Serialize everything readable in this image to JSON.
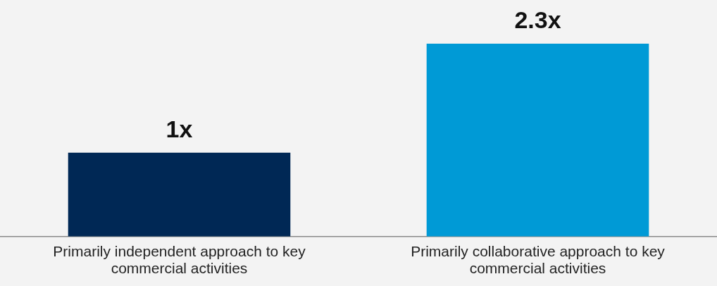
{
  "chart_data": {
    "type": "bar",
    "categories": [
      "Primarily independent approach to key commercial activities",
      "Primarily collaborative approach to key commercial activities"
    ],
    "values": [
      1,
      2.3
    ],
    "value_labels": [
      "1x",
      "2.3x"
    ],
    "colors": [
      "#002855",
      "#009ad6"
    ],
    "grid": false,
    "legend": false
  }
}
